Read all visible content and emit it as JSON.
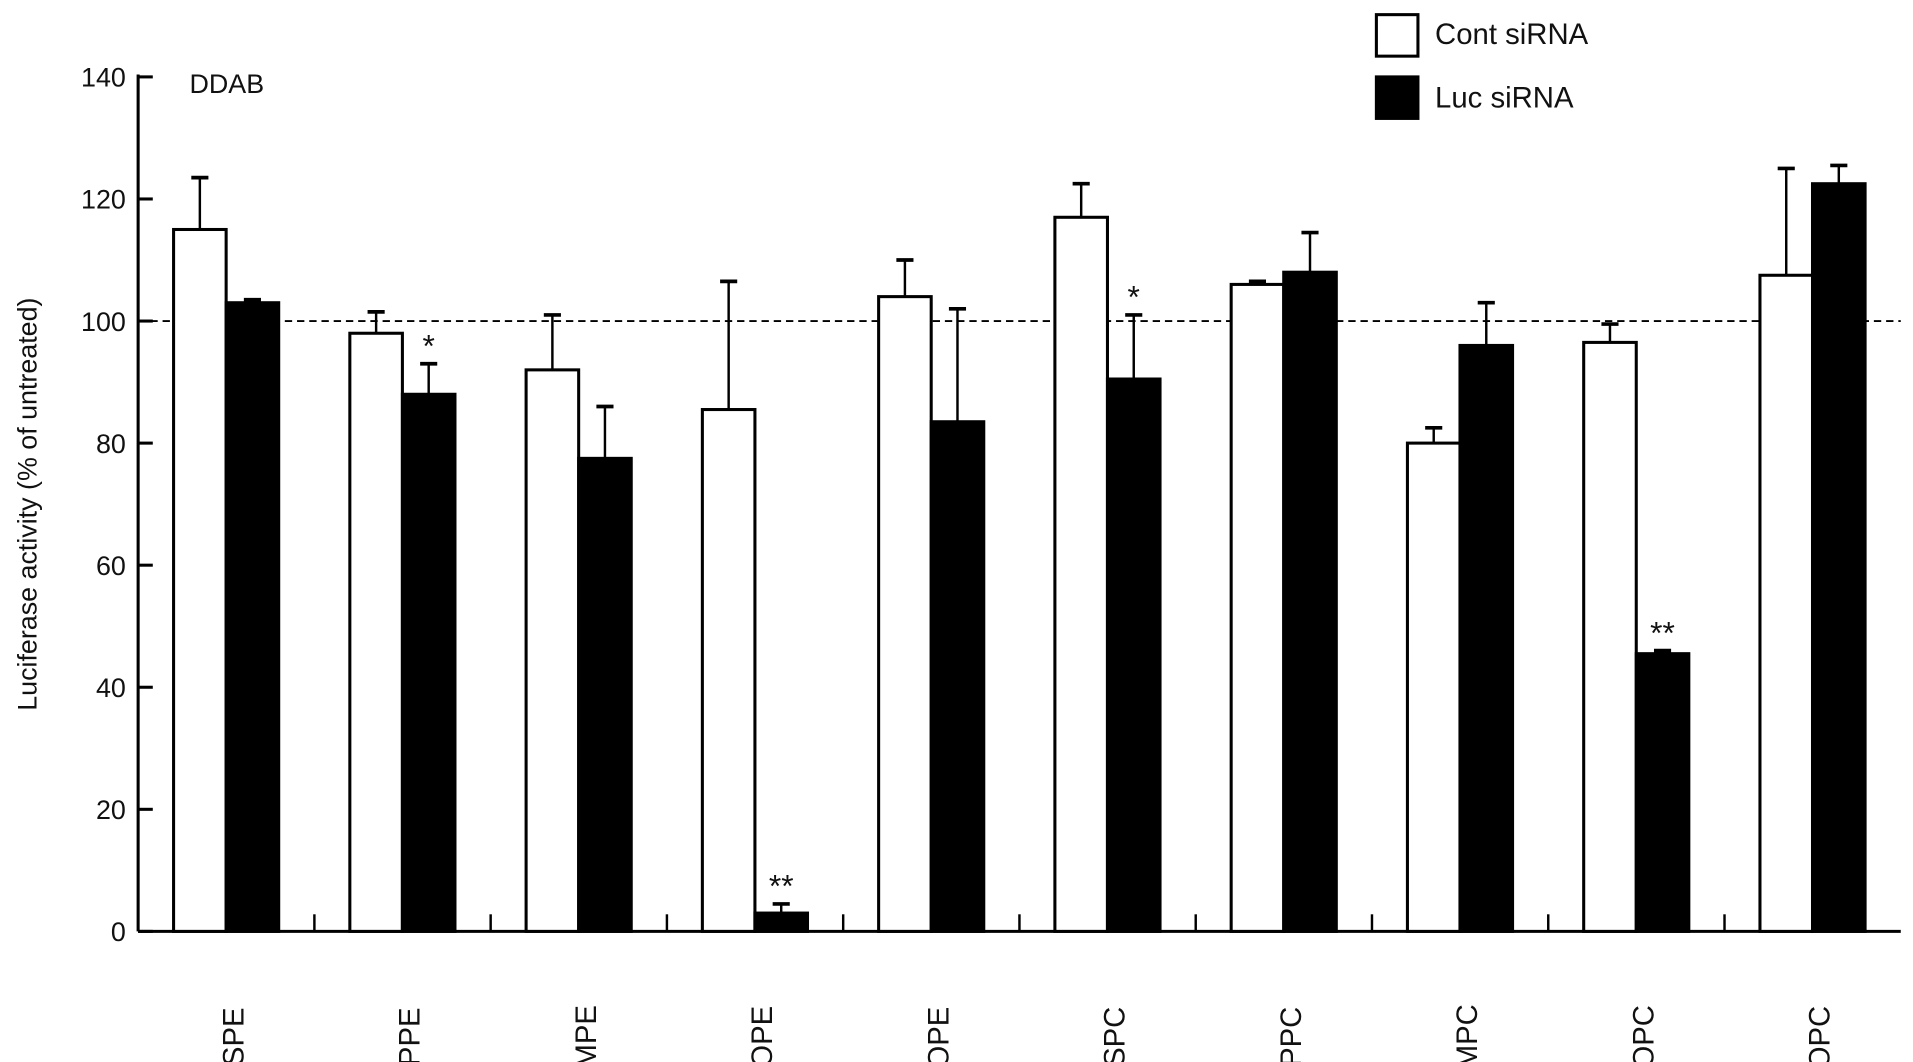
{
  "chart_data": {
    "type": "bar",
    "title": "",
    "annotation": "DDAB",
    "xlabel": "",
    "ylabel": "Luciferase activity (% of untreated)",
    "ylim": [
      0,
      140
    ],
    "yticks": [
      "0",
      "20",
      "40",
      "60",
      "80",
      "100",
      "120",
      "140"
    ],
    "reference_line": 100,
    "grid": false,
    "legend_position": "top-right",
    "categories": [
      "DSPE",
      "DPPE",
      "DMPE",
      "DOPE",
      "POPE",
      "DSPC",
      "DPPC",
      "DMPC",
      "DOPC",
      "POPC"
    ],
    "series": [
      {
        "name": "Cont siRNA",
        "color": "#ffffff",
        "values": [
          115,
          98,
          92,
          85.5,
          104,
          117,
          106,
          80,
          96.5,
          107.5
        ],
        "errors": [
          8.5,
          3.5,
          9,
          21,
          6,
          5.5,
          0.5,
          2.5,
          3,
          17.5
        ],
        "significance": [
          "",
          "",
          "",
          "",
          "",
          "",
          "",
          "",
          "",
          ""
        ]
      },
      {
        "name": "Luc siRNA",
        "color": "#000000",
        "values": [
          103,
          88,
          77.5,
          3,
          83.5,
          90.5,
          108,
          96,
          45.5,
          122.5
        ],
        "errors": [
          0.5,
          5,
          8.5,
          1.5,
          18.5,
          10.5,
          6.5,
          7,
          0.5,
          3
        ],
        "significance": [
          "",
          "*",
          "",
          "**",
          "",
          "*",
          "",
          "",
          "**",
          ""
        ]
      }
    ]
  }
}
